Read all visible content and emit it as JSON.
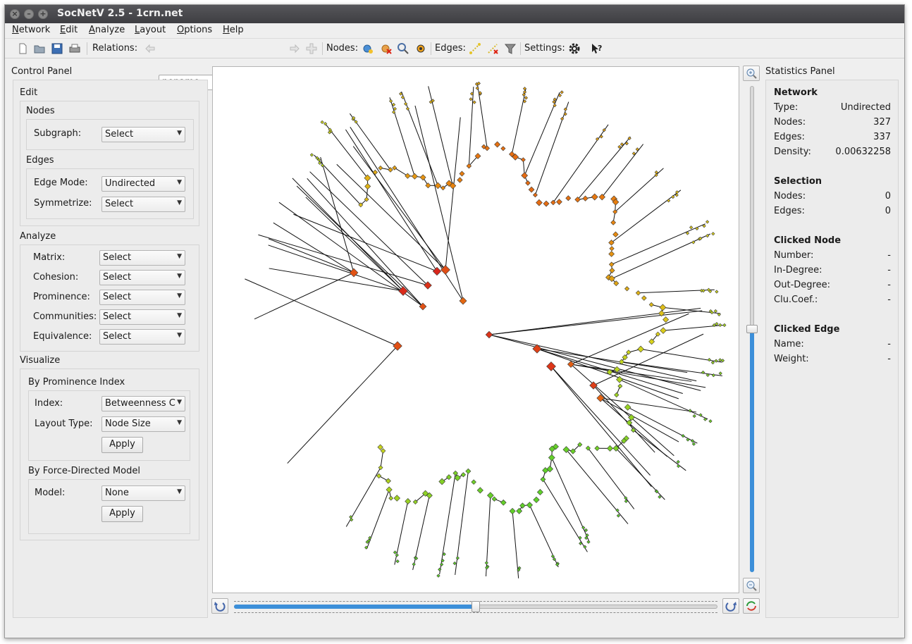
{
  "window": {
    "title": "SocNetV 2.5 - 1crn.net"
  },
  "menu": [
    "Network",
    "Edit",
    "Analyze",
    "Layout",
    "Options",
    "Help"
  ],
  "toolbar": {
    "relations_label": "Relations:",
    "relation_value": "noname",
    "nodes_label": "Nodes:",
    "edges_label": "Edges:",
    "settings_label": "Settings:"
  },
  "control_panel": {
    "title": "Control Panel",
    "edit": {
      "title": "Edit",
      "nodes_title": "Nodes",
      "subgraph_label": "Subgraph:",
      "subgraph_value": "Select",
      "edges_title": "Edges",
      "edge_mode_label": "Edge Mode:",
      "edge_mode_value": "Undirected",
      "symmetrize_label": "Symmetrize:",
      "symmetrize_value": "Select"
    },
    "analyze": {
      "title": "Analyze",
      "rows": [
        {
          "label": "Matrix:",
          "value": "Select"
        },
        {
          "label": "Cohesion:",
          "value": "Select"
        },
        {
          "label": "Prominence:",
          "value": "Select"
        },
        {
          "label": "Communities:",
          "value": "Select"
        },
        {
          "label": "Equivalence:",
          "value": "Select"
        }
      ]
    },
    "visualize": {
      "title": "Visualize",
      "prominence_title": "By Prominence Index",
      "index_label": "Index:",
      "index_value": "Betweenness C",
      "layout_type_label": "Layout Type:",
      "layout_type_value": "Node Size",
      "apply1": "Apply",
      "force_title": "By Force-Directed Model",
      "model_label": "Model:",
      "model_value": "None",
      "apply2": "Apply"
    }
  },
  "statistics": {
    "title": "Statistics Panel",
    "network": {
      "title": "Network",
      "rows": [
        {
          "label": "Type:",
          "value": "Undirected"
        },
        {
          "label": "Nodes:",
          "value": "327"
        },
        {
          "label": "Edges:",
          "value": "337"
        },
        {
          "label": "Density:",
          "value": "0.00632258"
        }
      ]
    },
    "selection": {
      "title": "Selection",
      "rows": [
        {
          "label": "Nodes:",
          "value": "0"
        },
        {
          "label": "Edges:",
          "value": "0"
        }
      ]
    },
    "clicked_node": {
      "title": "Clicked Node",
      "rows": [
        {
          "label": "Number:",
          "value": "-"
        },
        {
          "label": "In-Degree:",
          "value": "-"
        },
        {
          "label": "Out-Degree:",
          "value": "-"
        },
        {
          "label": "Clu.Coef.:",
          "value": "-"
        }
      ]
    },
    "clicked_edge": {
      "title": "Clicked Edge",
      "rows": [
        {
          "label": "Name:",
          "value": "-"
        },
        {
          "label": "Weight:",
          "value": "-"
        }
      ]
    }
  },
  "view": {
    "zoom_level": 0.5,
    "rotation_level": 0.5
  },
  "colors": {
    "accent": "#3c8fd9",
    "node_hub": "#d9231b",
    "node_mid": "#e8820f",
    "node_low": "#d9d41c",
    "node_leaf": "#5fcf2a"
  }
}
